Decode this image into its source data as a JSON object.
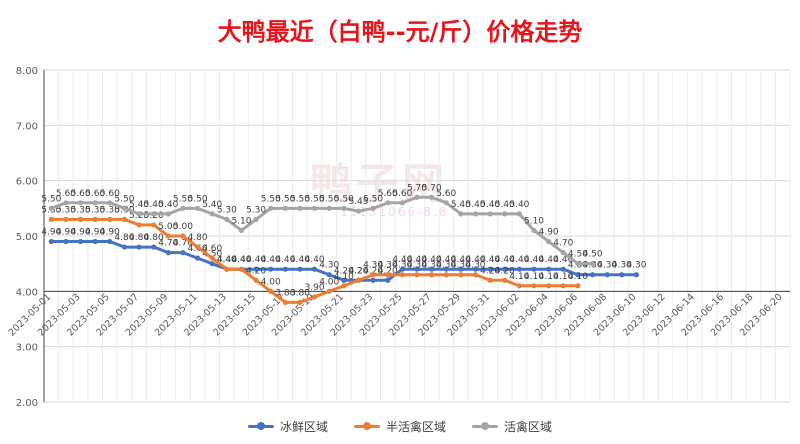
{
  "chart_data": {
    "type": "line",
    "title": "大鸭最近（白鸭--元/斤）价格走势",
    "xlabel": "",
    "ylabel": "",
    "ylim": [
      2.0,
      8.0
    ],
    "y_ticks": [
      "2.00",
      "3.00",
      "4.00",
      "5.00",
      "6.00",
      "7.00",
      "8.00"
    ],
    "x_ticks": [
      "2023-05-01",
      "2023-05-03",
      "2023-05-05",
      "2023-05-07",
      "2023-05-09",
      "2023-05-11",
      "2023-05-13",
      "2023-05-15",
      "2023-05-17",
      "2023-05-19",
      "2023-05-21",
      "2023-05-23",
      "2023-05-25",
      "2023-05-27",
      "2023-05-29",
      "2023-05-31",
      "2023-06-02",
      "2023-06-04",
      "2023-06-06",
      "2023-06-08",
      "2023-06-10",
      "2023-06-12",
      "2023-06-14",
      "2023-06-16",
      "2023-06-18",
      "2023-06-20"
    ],
    "x_start": "2023-05-01",
    "x_end": "2023-06-20",
    "grid": true,
    "legend_position": "bottom",
    "series": [
      {
        "name": "冰鲜区域",
        "color": "#4472c4",
        "values": [
          4.9,
          4.9,
          4.9,
          4.9,
          4.9,
          4.8,
          4.8,
          4.8,
          4.7,
          4.7,
          4.6,
          4.5,
          4.4,
          4.4,
          4.4,
          4.4,
          4.4,
          4.4,
          4.4,
          4.3,
          4.2,
          4.2,
          4.2,
          4.2,
          4.4,
          4.4,
          4.4,
          4.4,
          4.4,
          4.4,
          4.4,
          4.4,
          4.4,
          4.4,
          4.4,
          4.4,
          4.3,
          4.3,
          4.3,
          4.3,
          4.3
        ]
      },
      {
        "name": "半活禽区域",
        "color": "#ed7d31",
        "values": [
          5.3,
          5.3,
          5.3,
          5.3,
          5.3,
          5.3,
          5.2,
          5.2,
          5.0,
          5.0,
          4.8,
          4.6,
          4.4,
          4.4,
          4.2,
          4.0,
          3.8,
          3.8,
          3.9,
          4.0,
          4.1,
          4.2,
          4.3,
          4.3,
          4.3,
          4.3,
          4.3,
          4.3,
          4.3,
          4.3,
          4.2,
          4.2,
          4.1,
          4.1,
          4.1,
          4.1,
          4.1
        ]
      },
      {
        "name": "活禽区域",
        "color": "#a5a5a5",
        "values": [
          5.5,
          5.6,
          5.6,
          5.6,
          5.6,
          5.5,
          5.4,
          5.4,
          5.4,
          5.5,
          5.5,
          5.4,
          5.3,
          5.1,
          5.3,
          5.5,
          5.5,
          5.5,
          5.5,
          5.5,
          5.5,
          5.45,
          5.5,
          5.6,
          5.6,
          5.7,
          5.7,
          5.6,
          5.4,
          5.4,
          5.4,
          5.4,
          5.4,
          5.1,
          4.9,
          4.7,
          4.5,
          4.5
        ]
      }
    ]
  },
  "watermark": {
    "text": "鸭子网",
    "sub": "15131066-8.8"
  }
}
